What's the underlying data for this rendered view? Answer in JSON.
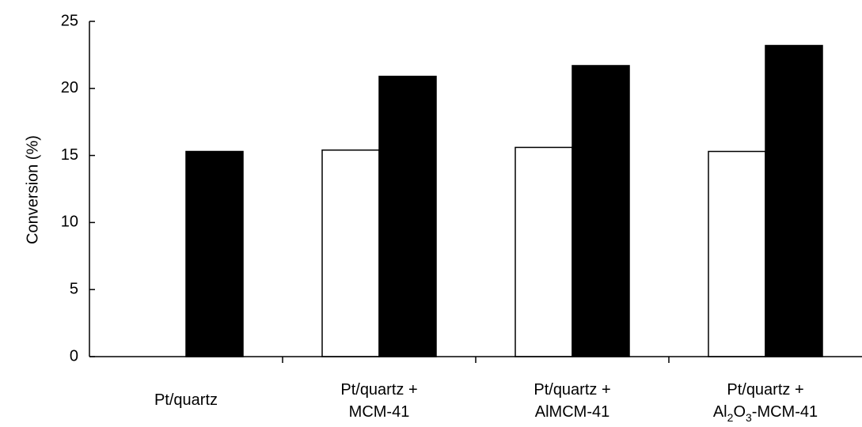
{
  "chart_data": {
    "type": "bar",
    "y_label": "Conversion (%)",
    "categories": [
      "Pt/quartz",
      "Pt/quartz +\nMCM-41",
      "Pt/quartz +\nAlMCM-41",
      "Pt/quartz +\nAl2O3-MCM-41"
    ],
    "series": [
      {
        "color": "#ffffff",
        "values": [
          null,
          15.4,
          15.6,
          15.3
        ]
      },
      {
        "color": "#000000",
        "values": [
          15.3,
          20.9,
          21.7,
          23.2
        ]
      }
    ],
    "ylim": [
      0,
      25
    ],
    "yticks": [
      0,
      5,
      10,
      15,
      20,
      25
    ]
  }
}
